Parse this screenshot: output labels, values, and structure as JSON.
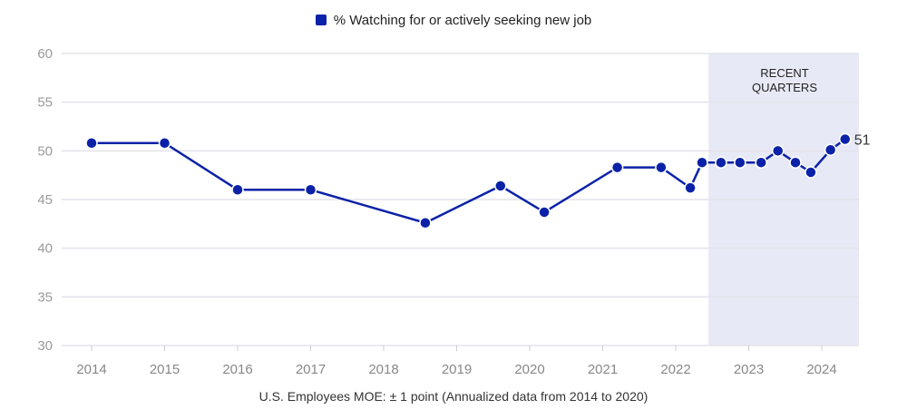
{
  "chart_data": {
    "type": "line",
    "title": "",
    "legend": [
      "% Watching for or actively seeking new job"
    ],
    "legend_position": "top-center",
    "xlabel": "U.S. Employees MOE: ± 1 point (Annualized data from 2014 to 2020)",
    "ylabel": "",
    "ylim": [
      30,
      60
    ],
    "xlim": [
      2013.6,
      2024.5
    ],
    "yticks": [
      "30",
      "35",
      "40",
      "45",
      "50",
      "55",
      "60"
    ],
    "xticks": [
      "2014",
      "2015",
      "2016",
      "2017",
      "2018",
      "2019",
      "2020",
      "2021",
      "2022",
      "2023",
      "2024"
    ],
    "grid": true,
    "series": [
      {
        "name": "% Watching for or actively seeking new job",
        "color": "#0b22a8",
        "x": [
          2014.0,
          2015.0,
          2016.0,
          2017.0,
          2018.57,
          2019.6,
          2020.2,
          2021.2,
          2021.8,
          2022.2,
          2022.36,
          2022.62,
          2022.88,
          2023.17,
          2023.4,
          2023.64,
          2023.85,
          2024.12,
          2024.32
        ],
        "y": [
          50.8,
          50.8,
          46.0,
          46.0,
          42.6,
          46.4,
          43.7,
          48.3,
          48.3,
          46.2,
          48.8,
          48.8,
          48.8,
          48.8,
          50.0,
          48.8,
          47.8,
          50.1,
          51.2
        ]
      }
    ],
    "shaded_region": {
      "x_start": 2022.45,
      "x_end": 2024.5,
      "label_line1": "RECENT",
      "label_line2": "QUARTERS",
      "color": "#e8e9f6"
    },
    "last_value_label": "51"
  }
}
